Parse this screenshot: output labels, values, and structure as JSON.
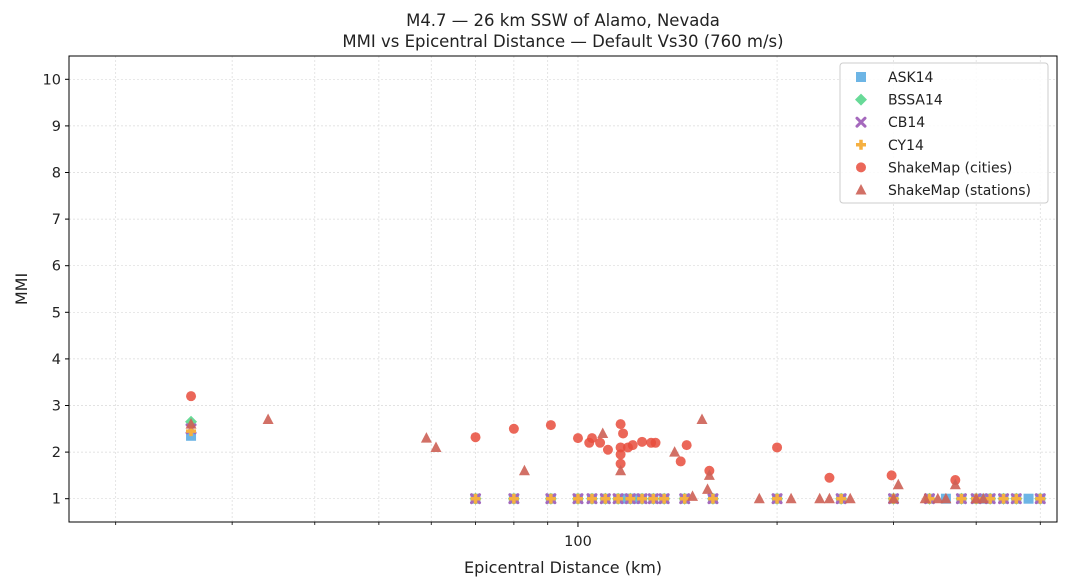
{
  "chart_data": {
    "type": "scatter",
    "title": "M4.7 — 26 km SSW of Alamo, Nevada",
    "subtitle": "MMI vs Epicentral Distance — Default Vs30 (760 m/s)",
    "xlabel": "Epicentral Distance (km)",
    "ylabel": "MMI",
    "xscale": "log",
    "xlim": [
      17,
      530
    ],
    "ylim": [
      0.5,
      10.5
    ],
    "x_major_ticks": [
      100
    ],
    "x_major_tick_labels": [
      "100"
    ],
    "x_minor_ticks": [
      20,
      30,
      40,
      50,
      60,
      70,
      80,
      90,
      200,
      300,
      400,
      500
    ],
    "y_ticks": [
      1,
      2,
      3,
      4,
      5,
      6,
      7,
      8,
      9,
      10
    ],
    "y_tick_labels": [
      "1",
      "2",
      "3",
      "4",
      "5",
      "6",
      "7",
      "8",
      "9",
      "10"
    ],
    "grid": true,
    "legend_position": "top-right",
    "series": [
      {
        "name": "ASK14",
        "marker": "square",
        "color": "#5dade2",
        "points": [
          [
            26,
            2.35
          ],
          [
            70,
            1.0
          ],
          [
            80,
            1.0
          ],
          [
            91,
            1.0
          ],
          [
            100,
            1.0
          ],
          [
            105,
            1.0
          ],
          [
            110,
            1.0
          ],
          [
            115,
            1.0
          ],
          [
            118,
            1.0
          ],
          [
            120,
            1.0
          ],
          [
            122,
            1.0
          ],
          [
            125,
            1.0
          ],
          [
            130,
            1.0
          ],
          [
            135,
            1.0
          ],
          [
            145,
            1.0
          ],
          [
            160,
            1.0
          ],
          [
            200,
            1.0
          ],
          [
            250,
            1.0
          ],
          [
            300,
            1.0
          ],
          [
            340,
            1.0
          ],
          [
            360,
            1.0
          ],
          [
            380,
            1.0
          ],
          [
            400,
            1.0
          ],
          [
            410,
            1.0
          ],
          [
            420,
            1.0
          ],
          [
            440,
            1.0
          ],
          [
            460,
            1.0
          ],
          [
            480,
            1.0
          ],
          [
            500,
            1.0
          ]
        ]
      },
      {
        "name": "BSSA14",
        "marker": "diamond",
        "color": "#58d68d",
        "points": [
          [
            26,
            2.65
          ],
          [
            70,
            1.0
          ],
          [
            80,
            1.0
          ],
          [
            91,
            1.0
          ],
          [
            100,
            1.0
          ],
          [
            105,
            1.0
          ],
          [
            110,
            1.0
          ],
          [
            115,
            1.0
          ],
          [
            120,
            1.0
          ],
          [
            125,
            1.0
          ],
          [
            130,
            1.0
          ],
          [
            135,
            1.0
          ],
          [
            145,
            1.0
          ],
          [
            160,
            1.0
          ],
          [
            200,
            1.0
          ],
          [
            250,
            1.0
          ],
          [
            300,
            1.0
          ],
          [
            340,
            1.0
          ],
          [
            380,
            1.0
          ],
          [
            400,
            1.0
          ],
          [
            420,
            1.0
          ],
          [
            440,
            1.0
          ],
          [
            460,
            1.0
          ],
          [
            500,
            1.0
          ]
        ]
      },
      {
        "name": "CB14",
        "marker": "x",
        "color": "#a569bd",
        "points": [
          [
            26,
            2.5
          ],
          [
            70,
            1.0
          ],
          [
            80,
            1.0
          ],
          [
            91,
            1.0
          ],
          [
            100,
            1.0
          ],
          [
            105,
            1.0
          ],
          [
            110,
            1.0
          ],
          [
            115,
            1.0
          ],
          [
            120,
            1.0
          ],
          [
            125,
            1.0
          ],
          [
            130,
            1.0
          ],
          [
            135,
            1.0
          ],
          [
            145,
            1.0
          ],
          [
            160,
            1.0
          ],
          [
            200,
            1.0
          ],
          [
            250,
            1.0
          ],
          [
            300,
            1.0
          ],
          [
            340,
            1.0
          ],
          [
            380,
            1.0
          ],
          [
            400,
            1.0
          ],
          [
            420,
            1.0
          ],
          [
            440,
            1.0
          ],
          [
            460,
            1.0
          ],
          [
            500,
            1.0
          ]
        ]
      },
      {
        "name": "CY14",
        "marker": "plus",
        "color": "#f5b041",
        "points": [
          [
            26,
            2.45
          ],
          [
            70,
            1.0
          ],
          [
            80,
            1.0
          ],
          [
            91,
            1.0
          ],
          [
            100,
            1.0
          ],
          [
            105,
            1.0
          ],
          [
            110,
            1.0
          ],
          [
            115,
            1.0
          ],
          [
            120,
            1.0
          ],
          [
            125,
            1.0
          ],
          [
            130,
            1.0
          ],
          [
            135,
            1.0
          ],
          [
            145,
            1.0
          ],
          [
            160,
            1.0
          ],
          [
            200,
            1.0
          ],
          [
            250,
            1.0
          ],
          [
            300,
            1.0
          ],
          [
            340,
            1.0
          ],
          [
            380,
            1.0
          ],
          [
            400,
            1.0
          ],
          [
            420,
            1.0
          ],
          [
            440,
            1.0
          ],
          [
            460,
            1.0
          ],
          [
            500,
            1.0
          ]
        ]
      },
      {
        "name": "ShakeMap (cities)",
        "marker": "circle",
        "color": "#e74c3c",
        "points": [
          [
            26,
            3.2
          ],
          [
            70,
            2.32
          ],
          [
            80,
            2.5
          ],
          [
            91,
            2.58
          ],
          [
            100,
            2.3
          ],
          [
            104,
            2.2
          ],
          [
            105,
            2.3
          ],
          [
            108,
            2.2
          ],
          [
            111,
            2.05
          ],
          [
            116,
            2.6
          ],
          [
            116,
            2.1
          ],
          [
            116,
            1.95
          ],
          [
            116,
            1.75
          ],
          [
            117,
            2.4
          ],
          [
            119,
            2.1
          ],
          [
            121,
            2.15
          ],
          [
            125,
            2.22
          ],
          [
            129,
            2.2
          ],
          [
            131,
            2.2
          ],
          [
            143,
            1.8
          ],
          [
            146,
            2.15
          ],
          [
            158,
            1.6
          ],
          [
            200,
            2.1
          ],
          [
            240,
            1.45
          ],
          [
            298,
            1.5
          ],
          [
            372,
            1.4
          ]
        ]
      },
      {
        "name": "ShakeMap (stations)",
        "marker": "triangle",
        "color": "#cd6155",
        "points": [
          [
            26,
            2.6
          ],
          [
            34,
            2.7
          ],
          [
            59,
            2.3
          ],
          [
            61,
            2.1
          ],
          [
            83,
            1.6
          ],
          [
            109,
            2.4
          ],
          [
            116,
            1.6
          ],
          [
            140,
            2.0
          ],
          [
            149,
            1.05
          ],
          [
            154,
            2.7
          ],
          [
            157,
            1.2
          ],
          [
            158,
            1.5
          ],
          [
            188,
            1.0
          ],
          [
            210,
            1.0
          ],
          [
            232,
            1.0
          ],
          [
            240,
            1.0
          ],
          [
            258,
            1.0
          ],
          [
            300,
            1.0
          ],
          [
            305,
            1.3
          ],
          [
            335,
            1.0
          ],
          [
            350,
            1.0
          ],
          [
            360,
            1.0
          ],
          [
            372,
            1.3
          ],
          [
            400,
            1.0
          ],
          [
            410,
            1.0
          ]
        ]
      }
    ]
  }
}
